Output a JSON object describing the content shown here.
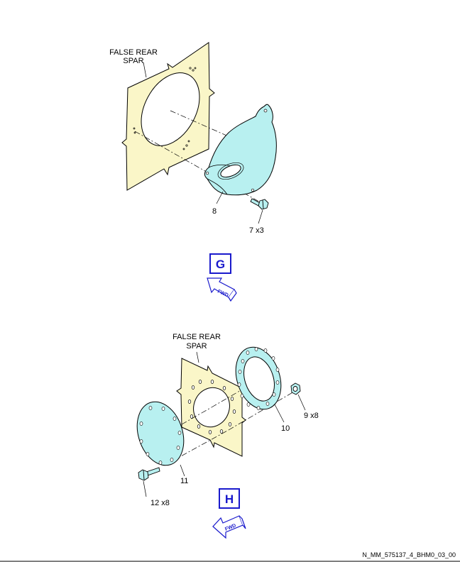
{
  "view_g": {
    "spar_label_line1": "FALSE REAR",
    "spar_label_line2": "SPAR",
    "callout_8": "8",
    "callout_7": "7 x3",
    "view_letter": "G",
    "fwd_label": "FWD"
  },
  "view_h": {
    "spar_label_line1": "FALSE REAR",
    "spar_label_line2": "SPAR",
    "callout_10": "10",
    "callout_9": "9 x8",
    "callout_11": "11",
    "callout_12": "12 x8",
    "view_letter": "H",
    "fwd_label": "FWD"
  },
  "reference_code": "N_MM_575137_4_BHM0_03_00",
  "colors": {
    "spar_fill": "#faf6c8",
    "part_fill": "#b8f0f0",
    "accent_blue": "#1a1acc",
    "ink": "#000000"
  }
}
